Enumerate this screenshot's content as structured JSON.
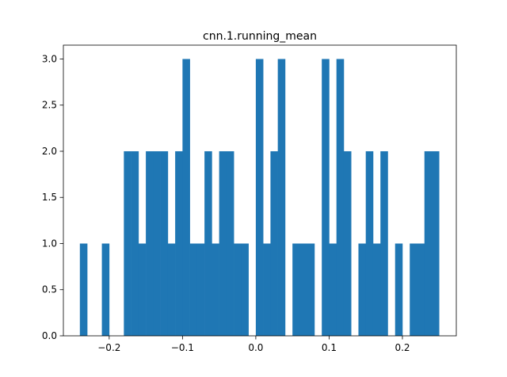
{
  "chart_data": {
    "type": "bar",
    "title": "cnn.1.running_mean",
    "xlabel": "",
    "ylabel": "",
    "xlim": [
      -0.2625,
      0.2735
    ],
    "ylim": [
      0,
      3.15
    ],
    "grid": false,
    "bin_width": 0.01,
    "bar_color": "#1f77b4",
    "x_ticks": [
      {
        "value": -0.2,
        "label": "−0.2"
      },
      {
        "value": -0.1,
        "label": "−0.1"
      },
      {
        "value": 0.0,
        "label": "0.0"
      },
      {
        "value": 0.1,
        "label": "0.1"
      },
      {
        "value": 0.2,
        "label": "0.2"
      }
    ],
    "y_ticks": [
      {
        "value": 0.0,
        "label": "0.0"
      },
      {
        "value": 0.5,
        "label": "0.5"
      },
      {
        "value": 1.0,
        "label": "1.0"
      },
      {
        "value": 1.5,
        "label": "1.5"
      },
      {
        "value": 2.0,
        "label": "2.0"
      },
      {
        "value": 2.5,
        "label": "2.5"
      },
      {
        "value": 3.0,
        "label": "3.0"
      }
    ],
    "bins": [
      {
        "x": -0.24,
        "count": 1
      },
      {
        "x": -0.21,
        "count": 1
      },
      {
        "x": -0.18,
        "count": 2
      },
      {
        "x": -0.17,
        "count": 2
      },
      {
        "x": -0.16,
        "count": 1
      },
      {
        "x": -0.15,
        "count": 2
      },
      {
        "x": -0.14,
        "count": 2
      },
      {
        "x": -0.13,
        "count": 2
      },
      {
        "x": -0.12,
        "count": 1
      },
      {
        "x": -0.11,
        "count": 2
      },
      {
        "x": -0.1,
        "count": 3
      },
      {
        "x": -0.09,
        "count": 1
      },
      {
        "x": -0.08,
        "count": 1
      },
      {
        "x": -0.07,
        "count": 2
      },
      {
        "x": -0.06,
        "count": 1
      },
      {
        "x": -0.05,
        "count": 2
      },
      {
        "x": -0.04,
        "count": 2
      },
      {
        "x": -0.03,
        "count": 1
      },
      {
        "x": -0.02,
        "count": 1
      },
      {
        "x": 0.0,
        "count": 3
      },
      {
        "x": 0.01,
        "count": 1
      },
      {
        "x": 0.02,
        "count": 2
      },
      {
        "x": 0.03,
        "count": 3
      },
      {
        "x": 0.05,
        "count": 1
      },
      {
        "x": 0.06,
        "count": 1
      },
      {
        "x": 0.07,
        "count": 1
      },
      {
        "x": 0.09,
        "count": 3
      },
      {
        "x": 0.1,
        "count": 1
      },
      {
        "x": 0.11,
        "count": 3
      },
      {
        "x": 0.12,
        "count": 2
      },
      {
        "x": 0.14,
        "count": 1
      },
      {
        "x": 0.15,
        "count": 2
      },
      {
        "x": 0.16,
        "count": 1
      },
      {
        "x": 0.17,
        "count": 2
      },
      {
        "x": 0.19,
        "count": 1
      },
      {
        "x": 0.21,
        "count": 1
      },
      {
        "x": 0.22,
        "count": 1
      },
      {
        "x": 0.23,
        "count": 2
      },
      {
        "x": 0.24,
        "count": 2
      }
    ]
  }
}
